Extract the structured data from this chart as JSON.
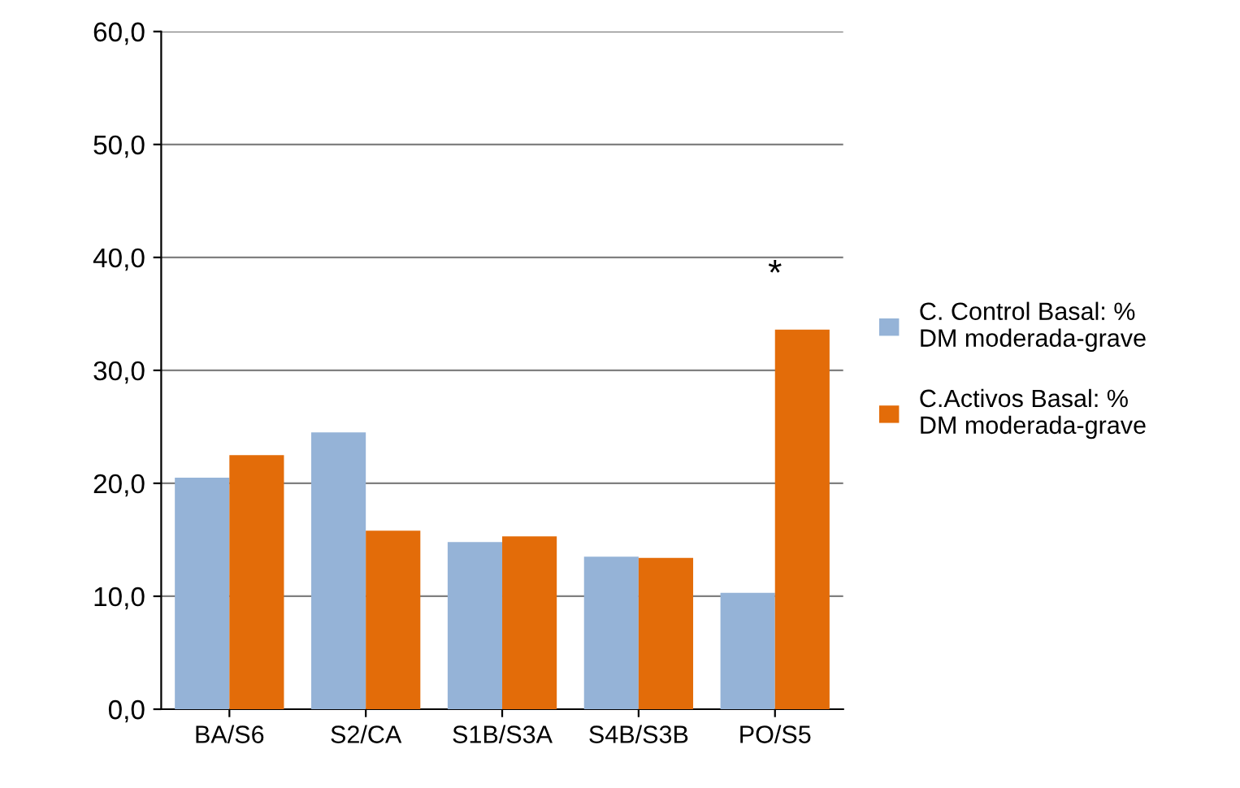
{
  "chart_data": {
    "type": "bar",
    "categories": [
      "BA/S6",
      "S2/CA",
      "S1B/S3A",
      "S4B/S3B",
      "PO/S5"
    ],
    "series": [
      {
        "name": "C. Control Basal: % DM moderada-grave",
        "color": "#95b3d7",
        "values": [
          20.5,
          24.5,
          14.8,
          13.5,
          10.3
        ]
      },
      {
        "name": "C.Activos Basal: % DM moderada-grave",
        "color": "#e36c09",
        "values": [
          22.5,
          15.8,
          15.3,
          13.4,
          33.6
        ]
      }
    ],
    "ylim": [
      0,
      60
    ],
    "yticks": [
      {
        "value": 0,
        "label": "0,0"
      },
      {
        "value": 10,
        "label": "10,0"
      },
      {
        "value": 20,
        "label": "20,0"
      },
      {
        "value": 30,
        "label": "30,0"
      },
      {
        "value": 40,
        "label": "40,0"
      },
      {
        "value": 50,
        "label": "50,0"
      },
      {
        "value": 60,
        "label": "60,0"
      }
    ],
    "grid": "y",
    "legend": "right",
    "annotations": [
      "*"
    ]
  }
}
